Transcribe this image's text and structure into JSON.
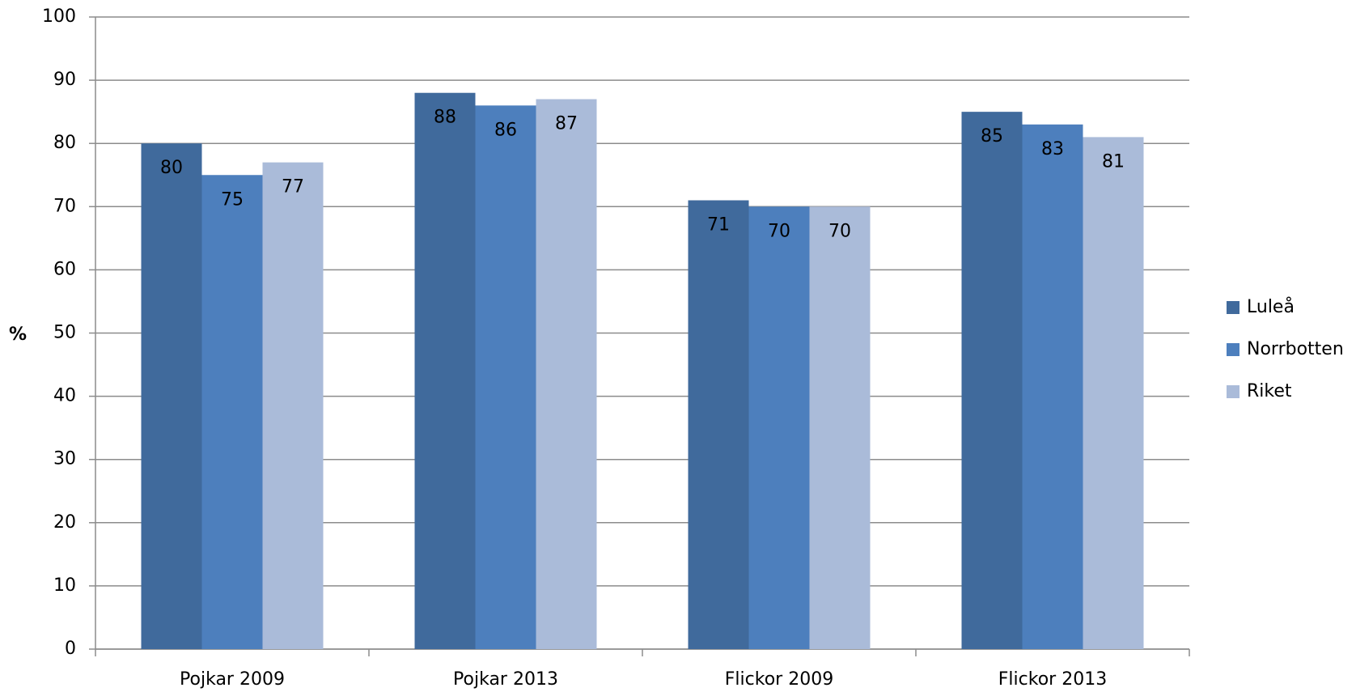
{
  "chart_data": {
    "type": "bar",
    "y_axis_label": "%",
    "categories": [
      "Pojkar 2009",
      "Pojkar 2013",
      "Flickor 2009",
      "Flickor 2013"
    ],
    "series": [
      {
        "name": "Luleå",
        "color": "#406a9c",
        "values": [
          80,
          88,
          71,
          85
        ]
      },
      {
        "name": "Norrbotten",
        "color": "#4d7fbd",
        "values": [
          75,
          86,
          70,
          83
        ]
      },
      {
        "name": "Riket",
        "color": "#aabbd9",
        "values": [
          77,
          87,
          70,
          81
        ]
      }
    ],
    "ylim": [
      0,
      100
    ],
    "yticks": [
      0,
      10,
      20,
      30,
      40,
      50,
      60,
      70,
      80,
      90,
      100
    ],
    "grid": true,
    "legend": "right",
    "data_labels": true
  }
}
